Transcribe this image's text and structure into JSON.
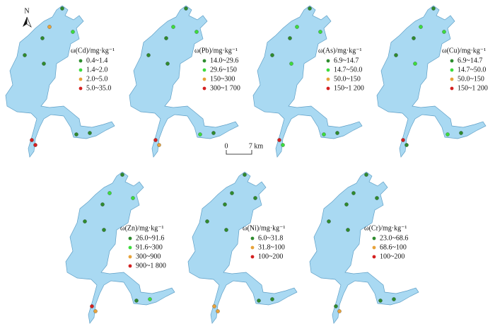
{
  "north": "N",
  "scale_bar": {
    "start": "0",
    "end": "7 km"
  },
  "panels": [
    {
      "title": "ω(Cd)/mg·kg⁻¹",
      "items": [
        {
          "label": "0.4~1.4",
          "color": "#2e8b2e"
        },
        {
          "label": "1.4~2.0",
          "color": "#3ddc3d"
        },
        {
          "label": "2.0~5.0",
          "color": "#e8a33a"
        },
        {
          "label": "5.0~35.0",
          "color": "#d42020"
        }
      ]
    },
    {
      "title": "ω(Pb)/mg·kg⁻¹",
      "items": [
        {
          "label": "14.0~29.6",
          "color": "#2e8b2e"
        },
        {
          "label": "29.6~150",
          "color": "#3ddc3d"
        },
        {
          "label": "150~300",
          "color": "#e8a33a"
        },
        {
          "label": "300~1 700",
          "color": "#d42020"
        }
      ]
    },
    {
      "title": "ω(As)/mg·kg⁻¹",
      "items": [
        {
          "label": "6.9~14.7",
          "color": "#2e8b2e"
        },
        {
          "label": "14.7~50.0",
          "color": "#3ddc3d"
        },
        {
          "label": "50.0~150",
          "color": "#e8a33a"
        },
        {
          "label": "150~1 200",
          "color": "#d42020"
        }
      ]
    },
    {
      "title": "ω(Cu)/mg·kg⁻¹",
      "items": [
        {
          "label": "6.9~14.7",
          "color": "#2e8b2e"
        },
        {
          "label": "14.7~50.0",
          "color": "#3ddc3d"
        },
        {
          "label": "50.0~150",
          "color": "#e8a33a"
        },
        {
          "label": "150~1 200",
          "color": "#d42020"
        }
      ]
    },
    {
      "title": "ω(Zn)/mg·kg⁻¹",
      "items": [
        {
          "label": "26.0~91.6",
          "color": "#2e8b2e"
        },
        {
          "label": "91.6~300",
          "color": "#3ddc3d"
        },
        {
          "label": "300~900",
          "color": "#e8a33a"
        },
        {
          "label": "900~1 800",
          "color": "#d42020"
        }
      ]
    },
    {
      "title": "ω(Ni)/mg·kg⁻¹",
      "items": [
        {
          "label": "6.0~31.8",
          "color": "#2e8b2e"
        },
        {
          "label": "31.8~100",
          "color": "#e8a33a"
        },
        {
          "label": "100~200",
          "color": "#d42020"
        }
      ]
    },
    {
      "title": "ω(Cr)/mg·kg⁻¹",
      "items": [
        {
          "label": "23.0~68.6",
          "color": "#2e8b2e"
        },
        {
          "label": "68.6~100",
          "color": "#e8a33a"
        },
        {
          "label": "100~200",
          "color": "#d42020"
        }
      ]
    }
  ]
}
